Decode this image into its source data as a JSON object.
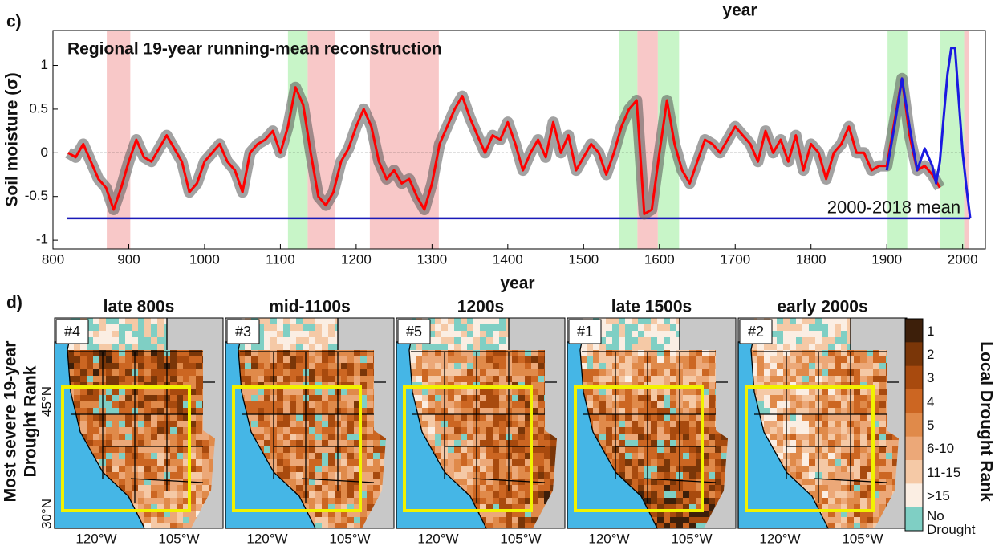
{
  "chart_data": {
    "type": "line",
    "panel_label": "c)",
    "top_label": "year",
    "annotation": "Regional 19-year running-mean reconstruction",
    "xlabel": "year",
    "ylabel": "Soil moisture (σ)",
    "xlim": [
      800,
      2030
    ],
    "ylim": [
      -1.1,
      1.4
    ],
    "xticks": [
      800,
      900,
      1000,
      1100,
      1200,
      1300,
      1400,
      1500,
      1600,
      1700,
      1800,
      1900,
      2000
    ],
    "yticks": [
      -1,
      -0.5,
      0,
      0.5,
      1
    ],
    "zero_line": true,
    "shaded_periods": [
      {
        "start": 871,
        "end": 902,
        "color": "#f8c8c8"
      },
      {
        "start": 1110,
        "end": 1136,
        "color": "#c8f5c8"
      },
      {
        "start": 1136,
        "end": 1172,
        "color": "#f8c8c8"
      },
      {
        "start": 1218,
        "end": 1309,
        "color": "#f8c8c8"
      },
      {
        "start": 1547,
        "end": 1571,
        "color": "#c8f5c8"
      },
      {
        "start": 1571,
        "end": 1598,
        "color": "#f8c8c8"
      },
      {
        "start": 1598,
        "end": 1626,
        "color": "#c8f5c8"
      },
      {
        "start": 1901,
        "end": 1927,
        "color": "#c8f5c8"
      },
      {
        "start": 1970,
        "end": 2002,
        "color": "#c8f5c8"
      },
      {
        "start": 2002,
        "end": 2008,
        "color": "#f8c8c8"
      }
    ],
    "reference_line": {
      "value": -0.75,
      "label": "2000-2018 mean",
      "color": "#1a1ab8",
      "start": 818,
      "end": 2010
    },
    "series": [
      {
        "color": "#ff0000",
        "x": [
          820,
          830,
          840,
          850,
          860,
          870,
          880,
          890,
          900,
          910,
          920,
          930,
          940,
          950,
          960,
          970,
          980,
          990,
          1000,
          1010,
          1020,
          1030,
          1040,
          1050,
          1060,
          1070,
          1080,
          1090,
          1100,
          1110,
          1120,
          1130,
          1140,
          1150,
          1160,
          1170,
          1180,
          1190,
          1200,
          1210,
          1220,
          1230,
          1240,
          1250,
          1260,
          1270,
          1280,
          1290,
          1300,
          1310,
          1320,
          1330,
          1340,
          1350,
          1360,
          1370,
          1380,
          1390,
          1400,
          1410,
          1420,
          1430,
          1440,
          1450,
          1460,
          1470,
          1480,
          1490,
          1500,
          1510,
          1520,
          1530,
          1540,
          1550,
          1560,
          1570,
          1580,
          1590,
          1600,
          1610,
          1620,
          1630,
          1640,
          1650,
          1660,
          1670,
          1680,
          1690,
          1700,
          1710,
          1720,
          1730,
          1740,
          1750,
          1760,
          1770,
          1780,
          1790,
          1800,
          1810,
          1820,
          1830,
          1840,
          1850,
          1860,
          1870,
          1880,
          1890,
          1900,
          1910,
          1920,
          1930,
          1940,
          1950,
          1960,
          1970
        ],
        "values": [
          0.0,
          -0.05,
          0.1,
          -0.1,
          -0.3,
          -0.4,
          -0.65,
          -0.4,
          -0.1,
          0.15,
          -0.05,
          -0.1,
          0.05,
          0.2,
          0.05,
          -0.1,
          -0.45,
          -0.35,
          -0.1,
          0.0,
          0.1,
          -0.1,
          -0.2,
          -0.45,
          0.0,
          0.1,
          0.15,
          0.25,
          0.0,
          0.3,
          0.75,
          0.55,
          0.0,
          -0.5,
          -0.6,
          -0.45,
          -0.1,
          0.05,
          0.3,
          0.5,
          0.3,
          -0.1,
          -0.3,
          -0.2,
          -0.35,
          -0.3,
          -0.5,
          -0.65,
          -0.35,
          0.1,
          0.3,
          0.5,
          0.65,
          0.4,
          0.2,
          0.0,
          0.2,
          0.15,
          0.35,
          0.1,
          -0.2,
          0.0,
          0.15,
          -0.05,
          0.35,
          0.0,
          0.2,
          -0.2,
          -0.05,
          0.1,
          0.0,
          -0.25,
          0.0,
          0.3,
          0.5,
          0.6,
          -0.7,
          -0.65,
          0.0,
          0.6,
          0.1,
          -0.2,
          -0.35,
          -0.1,
          0.15,
          0.1,
          0.0,
          0.15,
          0.3,
          0.2,
          0.1,
          -0.1,
          0.25,
          0.0,
          0.15,
          -0.1,
          0.2,
          -0.2,
          0.1,
          0.0,
          -0.3,
          0.0,
          0.1,
          0.3,
          0.0,
          0.0,
          -0.2,
          -0.15,
          -0.15,
          0.35,
          0.85,
          0.2,
          -0.2,
          -0.15,
          -0.25,
          -0.4
        ]
      },
      {
        "color": "#1a1ae0",
        "x": [
          1900,
          1910,
          1920,
          1930,
          1940,
          1950,
          1960,
          1965,
          1970,
          1975,
          1980,
          1985,
          1990,
          1995,
          2000,
          2005,
          2010
        ],
        "values": [
          -0.2,
          0.3,
          0.85,
          0.3,
          -0.2,
          0.05,
          -0.15,
          -0.35,
          -0.1,
          0.4,
          0.9,
          1.2,
          1.2,
          0.6,
          0.0,
          -0.4,
          -0.75
        ]
      }
    ]
  },
  "maps": {
    "panel_label": "d)",
    "row_label": [
      "Most severe 19-year",
      "Drought Rank"
    ],
    "panels": [
      {
        "title": "late 800s",
        "rank": "#4"
      },
      {
        "title": "mid-1100s",
        "rank": "#3"
      },
      {
        "title": "1200s",
        "rank": "#5"
      },
      {
        "title": "late 1500s",
        "rank": "#1"
      },
      {
        "title": "early 2000s",
        "rank": "#2"
      }
    ],
    "lon_labels": [
      "120°W",
      "105°W"
    ],
    "lat_labels": [
      "45°N",
      "30°N"
    ],
    "colorbar": {
      "title": "Local Drought Rank",
      "items": [
        {
          "label": "1",
          "color": "#3d1f0a"
        },
        {
          "label": "2",
          "color": "#7a3608"
        },
        {
          "label": "3",
          "color": "#a84a0e"
        },
        {
          "label": "4",
          "color": "#cc6622"
        },
        {
          "label": "5",
          "color": "#e08a4a"
        },
        {
          "label": "6-10",
          "color": "#eca878"
        },
        {
          "label": "11-15",
          "color": "#f5c9a6"
        },
        {
          "label": ">15",
          "color": "#fbeee3"
        },
        {
          "label": "No Drought",
          "color": "#7fcfc4"
        }
      ]
    }
  }
}
